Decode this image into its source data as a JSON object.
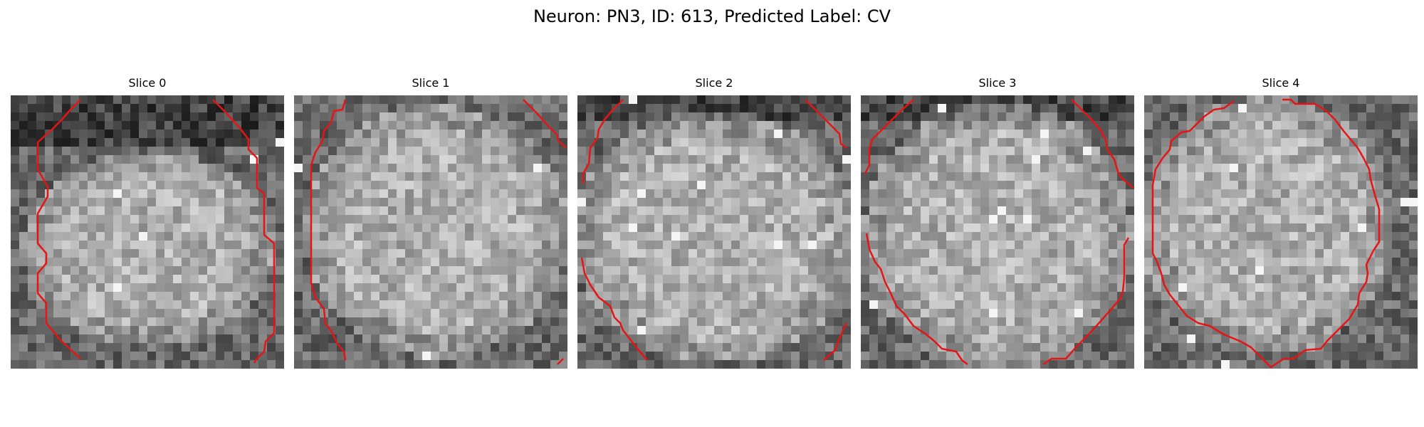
{
  "figure": {
    "title": "Neuron: PN3, ID: 613, Predicted Label: CV"
  },
  "slices": [
    {
      "title": "Slice 0"
    },
    {
      "title": "Slice 1"
    },
    {
      "title": "Slice 2"
    },
    {
      "title": "Slice 3"
    },
    {
      "title": "Slice 4"
    }
  ],
  "colors": {
    "contour": "#e61515",
    "background": "#ffffff"
  }
}
